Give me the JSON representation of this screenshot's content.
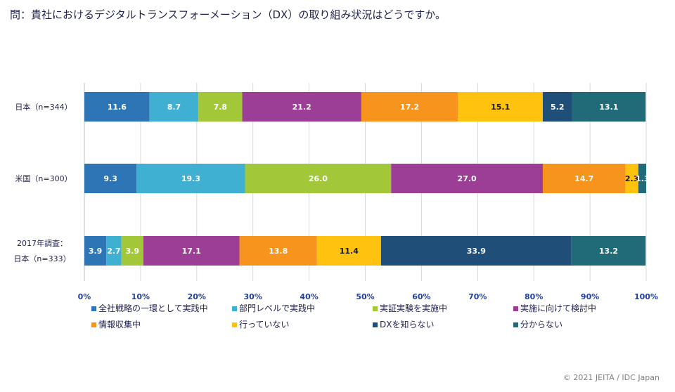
{
  "question": "問：貴社におけるデジタルトランスフォーメーション（DX）の取り組み状況はどうですか。",
  "credit": "© 2021 JEITA / IDC Japan",
  "chart_data": {
    "type": "bar",
    "orientation": "horizontal",
    "stacked": true,
    "title": "問：貴社におけるデジタルトランスフォーメーション（DX）の取り組み状況はどうですか。",
    "categories": [
      [
        "日本（n=344）"
      ],
      [
        "米国（n=300）"
      ],
      [
        "2017年調査：",
        "日本（n=333）"
      ]
    ],
    "xlim": [
      0,
      100
    ],
    "ticks": [
      "0%",
      "10%",
      "20%",
      "30%",
      "40%",
      "50%",
      "60%",
      "70%",
      "80%",
      "90%",
      "100%"
    ],
    "grid": true,
    "legend_position": "bottom",
    "series": [
      {
        "name": "全社戦略の一環として実践中",
        "color": "#2e75b6",
        "label_color": "#ffffff",
        "values": [
          11.6,
          9.3,
          3.9
        ]
      },
      {
        "name": "部門レベルで実践中",
        "color": "#3fb0d2",
        "label_color": "#ffffff",
        "values": [
          8.7,
          19.3,
          2.7
        ]
      },
      {
        "name": "実証実験を実施中",
        "color": "#a2c739",
        "label_color": "#ffffff",
        "values": [
          7.8,
          26.0,
          3.9
        ]
      },
      {
        "name": "実施に向けて検討中",
        "color": "#9c3d96",
        "label_color": "#ffffff",
        "values": [
          21.2,
          27.0,
          17.1
        ]
      },
      {
        "name": "情報収集中",
        "color": "#f7941e",
        "label_color": "#ffffff",
        "values": [
          17.2,
          14.7,
          13.8
        ]
      },
      {
        "name": "行っていない",
        "color": "#ffc20e",
        "label_color": "#1a1a1a",
        "values": [
          15.1,
          2.3,
          11.4
        ]
      },
      {
        "name": "DXを知らない",
        "color": "#1f4e79",
        "label_color": "#ffffff",
        "values": [
          5.2,
          0.1,
          33.9
        ]
      },
      {
        "name": "分からない",
        "color": "#216b78",
        "label_color": "#ffffff",
        "values": [
          13.1,
          1.3,
          13.2
        ]
      }
    ],
    "labels": [
      [
        "11.6",
        "9.3",
        "3.9"
      ],
      [
        "8.7",
        "19.3",
        "2.7"
      ],
      [
        "7.8",
        "26.0",
        "3.9"
      ],
      [
        "21.2",
        "27.0",
        "17.1"
      ],
      [
        "17.2",
        "14.7",
        "13.8"
      ],
      [
        "15.1",
        "2.3",
        "11.4"
      ],
      [
        "5.2",
        "",
        "33.9"
      ],
      [
        "13.1",
        "1.3",
        "13.2"
      ]
    ]
  }
}
